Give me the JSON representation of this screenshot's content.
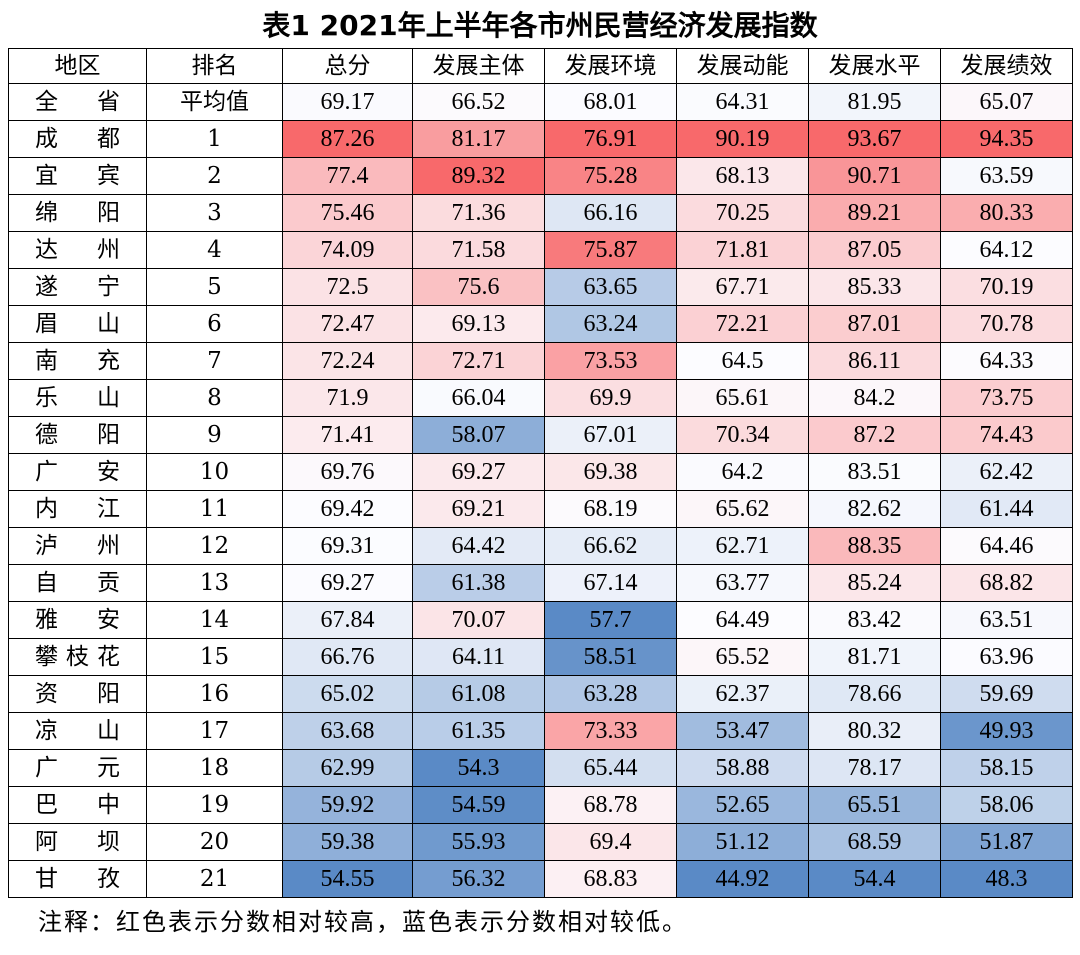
{
  "title": "表1  2021年上半年各市州民营经济发展指数",
  "columns": [
    "地区",
    "排名",
    "总分",
    "发展主体",
    "发展环境",
    "发展动能",
    "发展水平",
    "发展绩效"
  ],
  "rows": [
    {
      "region": "全省",
      "rank": "平均值",
      "values": [
        69.17,
        66.52,
        68.01,
        64.31,
        81.95,
        65.07
      ]
    },
    {
      "region": "成都",
      "rank": "1",
      "values": [
        87.26,
        81.17,
        76.91,
        90.19,
        93.67,
        94.35
      ]
    },
    {
      "region": "宜宾",
      "rank": "2",
      "values": [
        77.4,
        89.32,
        75.28,
        68.13,
        90.71,
        63.59
      ]
    },
    {
      "region": "绵阳",
      "rank": "3",
      "values": [
        75.46,
        71.36,
        66.16,
        70.25,
        89.21,
        80.33
      ]
    },
    {
      "region": "达州",
      "rank": "4",
      "values": [
        74.09,
        71.58,
        75.87,
        71.81,
        87.05,
        64.12
      ]
    },
    {
      "region": "遂宁",
      "rank": "5",
      "values": [
        72.5,
        75.6,
        63.65,
        67.71,
        85.33,
        70.19
      ]
    },
    {
      "region": "眉山",
      "rank": "6",
      "values": [
        72.47,
        69.13,
        63.24,
        72.21,
        87.01,
        70.78
      ]
    },
    {
      "region": "南充",
      "rank": "7",
      "values": [
        72.24,
        72.71,
        73.53,
        64.5,
        86.11,
        64.33
      ]
    },
    {
      "region": "乐山",
      "rank": "8",
      "values": [
        71.9,
        66.04,
        69.9,
        65.61,
        84.2,
        73.75
      ]
    },
    {
      "region": "德阳",
      "rank": "9",
      "values": [
        71.41,
        58.07,
        67.01,
        70.34,
        87.2,
        74.43
      ]
    },
    {
      "region": "广安",
      "rank": "10",
      "values": [
        69.76,
        69.27,
        69.38,
        64.2,
        83.51,
        62.42
      ]
    },
    {
      "region": "内江",
      "rank": "11",
      "values": [
        69.42,
        69.21,
        68.19,
        65.62,
        82.62,
        61.44
      ]
    },
    {
      "region": "泸州",
      "rank": "12",
      "values": [
        69.31,
        64.42,
        66.62,
        62.71,
        88.35,
        64.46
      ]
    },
    {
      "region": "自贡",
      "rank": "13",
      "values": [
        69.27,
        61.38,
        67.14,
        63.77,
        85.24,
        68.82
      ]
    },
    {
      "region": "雅安",
      "rank": "14",
      "values": [
        67.84,
        70.07,
        57.7,
        64.49,
        83.42,
        63.51
      ]
    },
    {
      "region": "攀枝花",
      "rank": "15",
      "values": [
        66.76,
        64.11,
        58.51,
        65.52,
        81.71,
        63.96
      ]
    },
    {
      "region": "资阳",
      "rank": "16",
      "values": [
        65.02,
        61.08,
        63.28,
        62.37,
        78.66,
        59.69
      ]
    },
    {
      "region": "凉山",
      "rank": "17",
      "values": [
        63.68,
        61.35,
        73.33,
        53.47,
        80.32,
        49.93
      ]
    },
    {
      "region": "广元",
      "rank": "18",
      "values": [
        62.99,
        54.3,
        65.44,
        58.88,
        78.17,
        58.15
      ]
    },
    {
      "region": "巴中",
      "rank": "19",
      "values": [
        59.92,
        54.59,
        68.78,
        52.65,
        65.51,
        58.06
      ]
    },
    {
      "region": "阿坝",
      "rank": "20",
      "values": [
        59.38,
        55.93,
        69.4,
        51.12,
        68.59,
        51.87
      ]
    },
    {
      "region": "甘孜",
      "rank": "21",
      "values": [
        54.55,
        56.32,
        68.83,
        44.92,
        54.4,
        48.3
      ]
    }
  ],
  "note": "注释：红色表示分数相对较高，蓝色表示分数相对较低。",
  "colors": {
    "high": "#f8696b",
    "mid": "#fcfcff",
    "low": "#5a8ac6"
  }
}
